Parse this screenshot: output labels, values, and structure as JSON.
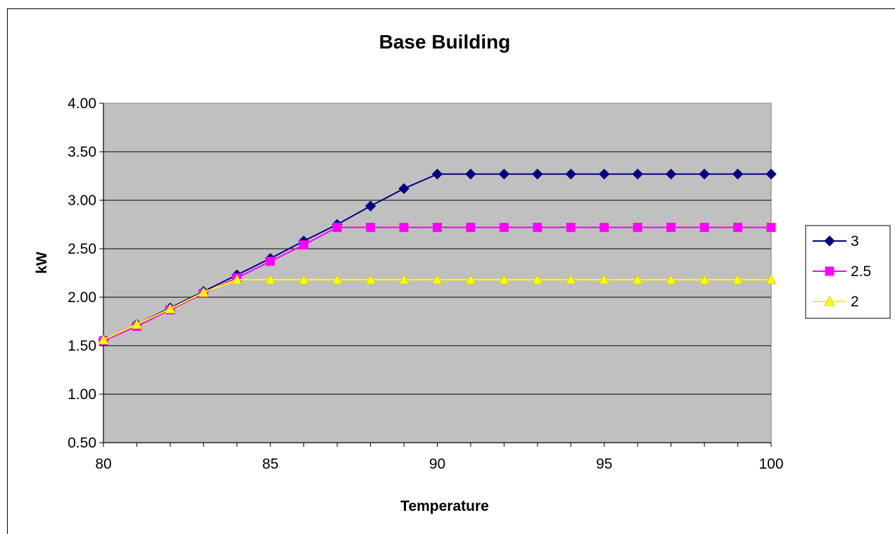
{
  "chart_data": {
    "type": "line",
    "title": "Base Building",
    "xlabel": "Temperature",
    "ylabel": "kW",
    "x": [
      80,
      81,
      82,
      83,
      84,
      85,
      86,
      87,
      88,
      89,
      90,
      91,
      92,
      93,
      94,
      95,
      96,
      97,
      98,
      99,
      100
    ],
    "xlim": [
      80,
      100
    ],
    "ylim": [
      0.5,
      4.0
    ],
    "xticks": [
      "80",
      "85",
      "90",
      "95",
      "100"
    ],
    "yticks": [
      "0.50",
      "1.00",
      "1.50",
      "2.00",
      "2.50",
      "3.00",
      "3.50",
      "4.00"
    ],
    "grid": "horizontal",
    "plot_background": "#c0c0c0",
    "legend_position": "right",
    "series": [
      {
        "name": "3",
        "color": "#000080",
        "marker": "diamond",
        "values": [
          1.56,
          1.72,
          1.89,
          2.06,
          2.23,
          2.4,
          2.58,
          2.75,
          2.94,
          3.12,
          3.27,
          3.27,
          3.27,
          3.27,
          3.27,
          3.27,
          3.27,
          3.27,
          3.27,
          3.27,
          3.27
        ]
      },
      {
        "name": "2.5",
        "color": "#ff00ff",
        "marker": "square",
        "values": [
          1.55,
          1.7,
          1.87,
          2.04,
          2.2,
          2.37,
          2.54,
          2.72,
          2.72,
          2.72,
          2.72,
          2.72,
          2.72,
          2.72,
          2.72,
          2.72,
          2.72,
          2.72,
          2.72,
          2.72,
          2.72
        ]
      },
      {
        "name": "2",
        "color": "#ffff00",
        "marker": "triangle",
        "values": [
          1.56,
          1.72,
          1.88,
          2.05,
          2.18,
          2.18,
          2.18,
          2.18,
          2.18,
          2.18,
          2.18,
          2.18,
          2.18,
          2.18,
          2.18,
          2.18,
          2.18,
          2.18,
          2.18,
          2.18,
          2.18
        ]
      }
    ]
  }
}
